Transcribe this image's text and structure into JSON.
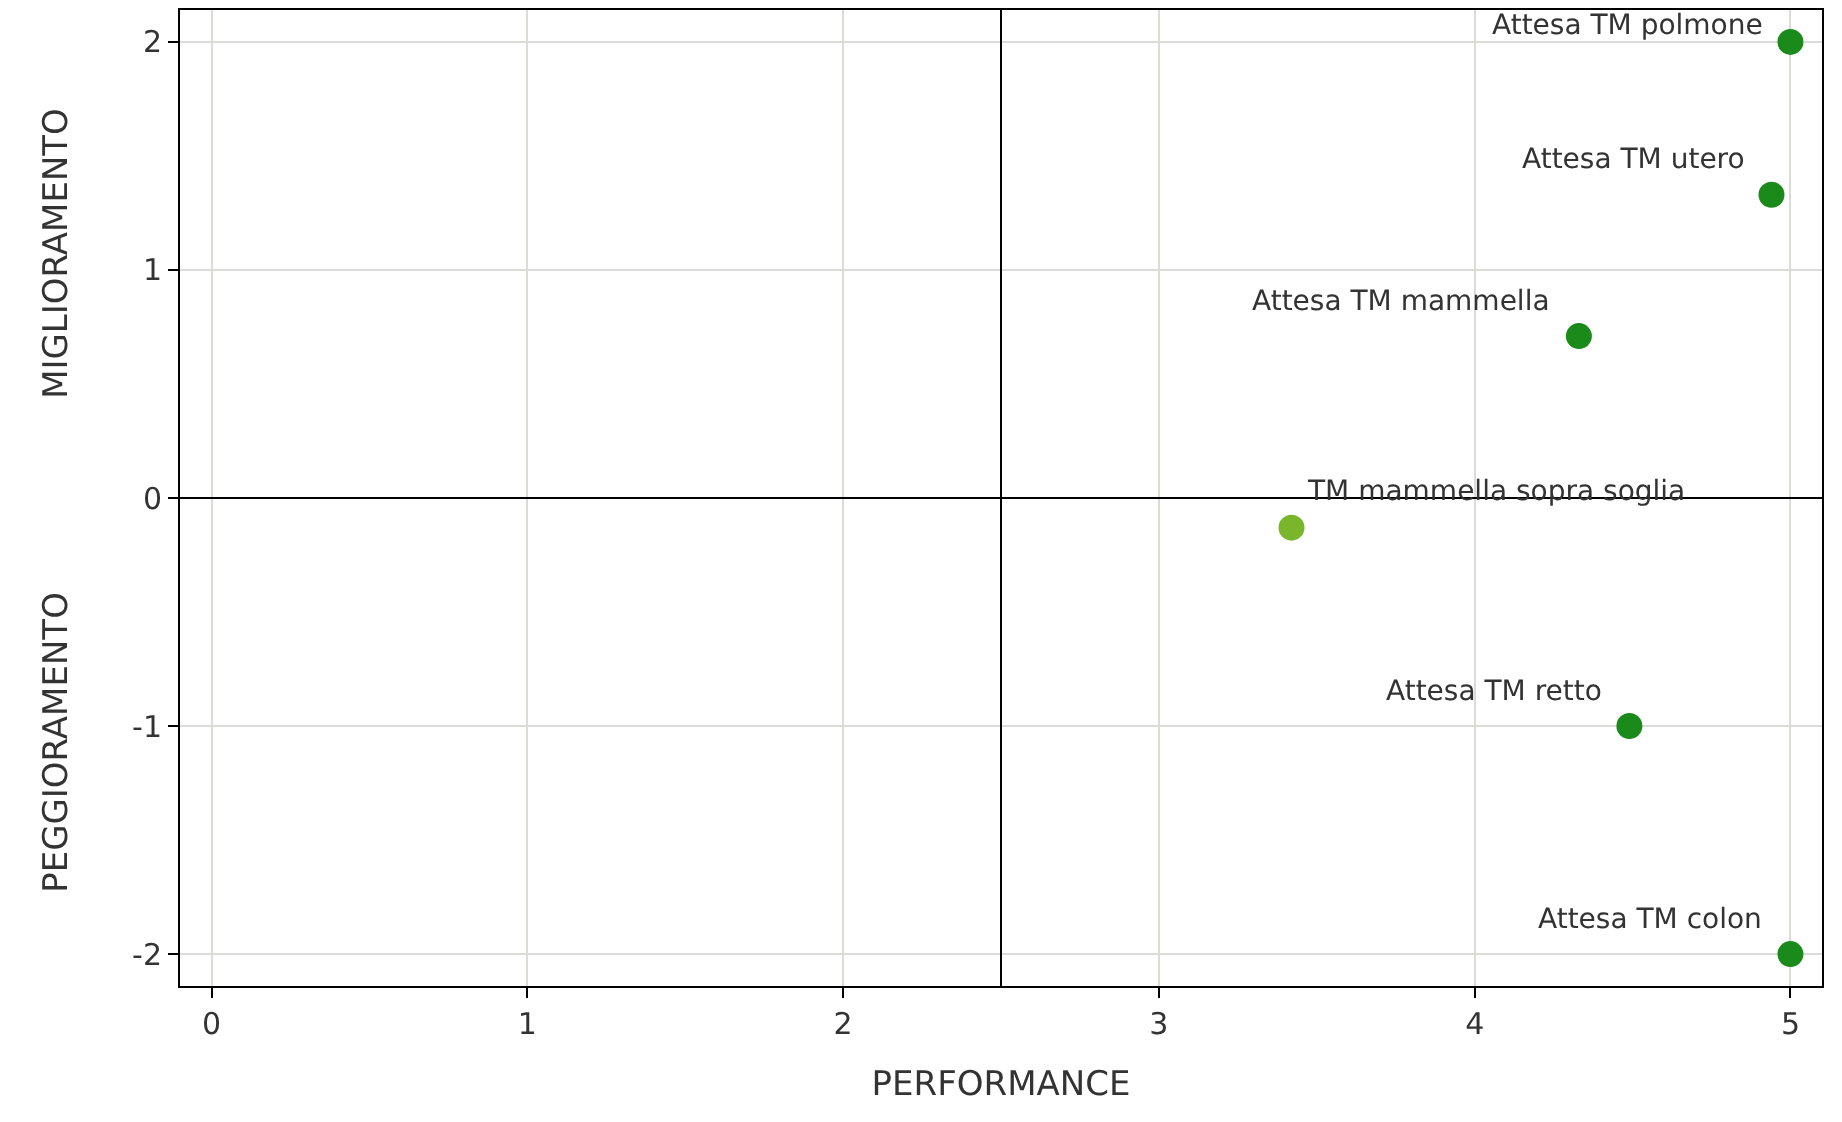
{
  "chart_data": {
    "type": "scatter",
    "xlabel": "PERFORMANCE",
    "x": [
      5,
      4.94,
      4.33,
      3.42,
      4.49,
      5
    ],
    "values": [
      2,
      1.33,
      0.71,
      -0.13,
      -1.0,
      -2
    ],
    "colors": [
      "#1a8a1a",
      "#1a8a1a",
      "#1a8a1a",
      "#7ab62b",
      "#1a8a1a",
      "#1a8a1a"
    ],
    "xlim": [
      -0.1,
      5.1
    ],
    "xticks": [
      0,
      1,
      2,
      3,
      4,
      5
    ],
    "ylim": [
      -2.14,
      2.14
    ],
    "yticks": [
      -2,
      -1,
      0,
      1,
      2
    ],
    "grid": true,
    "marker": "circle",
    "ref_lines": [
      {
        "axis": "x",
        "value": 2.5,
        "color": "#000000"
      },
      {
        "axis": "y",
        "value": 0,
        "color": "#000000"
      }
    ],
    "annotations": [
      {
        "text": "Attesa TM polmone",
        "x": 5,
        "y": 2
      },
      {
        "text": "Attesa TM utero",
        "x": 4.94,
        "y": 1.33
      },
      {
        "text": "Attesa TM mammella",
        "x": 4.33,
        "y": 0.71
      },
      {
        "text": "TM mammella sopra soglia",
        "x": 3.42,
        "y": -0.13
      },
      {
        "text": "Attesa TM retto",
        "x": 4.49,
        "y": -1.0
      },
      {
        "text": "Attesa TM colon",
        "x": 5,
        "y": -2
      },
      "MIGLIORAMENTO",
      "PEGGIORAMENTO"
    ]
  }
}
